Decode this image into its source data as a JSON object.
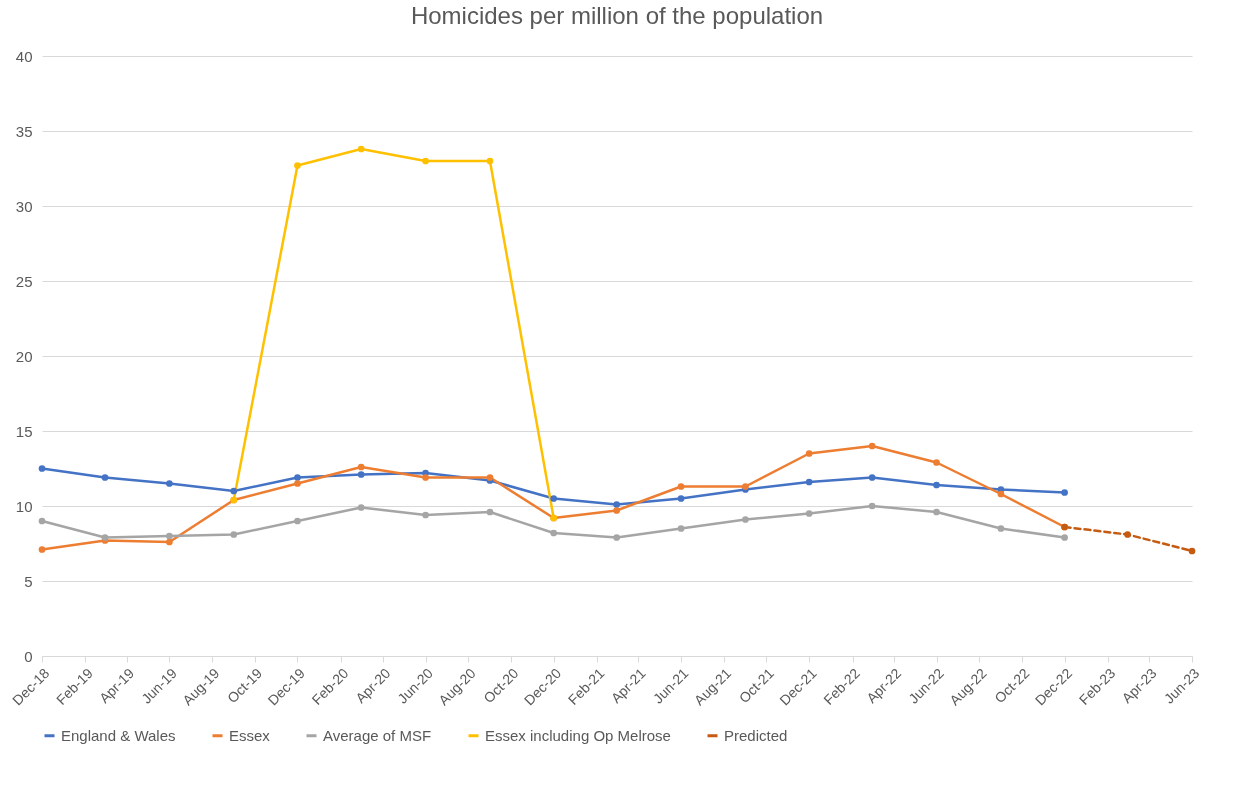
{
  "chart_data": {
    "type": "line",
    "title": "Homicides per million of the population",
    "x": [
      "2018-12",
      "2019-03",
      "2019-06",
      "2019-09",
      "2019-12",
      "2020-03",
      "2020-06",
      "2020-09",
      "2020-12",
      "2021-03",
      "2021-06",
      "2021-09",
      "2021-12",
      "2022-03",
      "2022-06",
      "2022-09",
      "2022-12"
    ],
    "series": [
      {
        "name": "England & Wales",
        "color": "#4472c4",
        "values": [
          12.5,
          11.9,
          11.5,
          11.0,
          11.9,
          12.1,
          12.2,
          11.7,
          10.5,
          10.1,
          10.5,
          11.1,
          11.6,
          11.9,
          11.4,
          11.1,
          10.9
        ]
      },
      {
        "name": "Essex",
        "color": "#ed7d31",
        "values": [
          7.1,
          7.7,
          7.6,
          10.4,
          11.5,
          12.6,
          11.9,
          11.9,
          9.2,
          9.7,
          11.3,
          11.3,
          13.5,
          14.0,
          12.9,
          10.8,
          8.6
        ]
      },
      {
        "name": "Average of MSF",
        "color": "#a5a5a5",
        "values": [
          9.0,
          7.9,
          8.0,
          8.1,
          9.0,
          9.9,
          9.4,
          9.6,
          8.2,
          7.9,
          8.5,
          9.1,
          9.5,
          10.0,
          9.6,
          8.5,
          7.9
        ]
      },
      {
        "name": "Essex including Op Melrose",
        "color": "#ffc000",
        "values": [
          null,
          null,
          null,
          10.4,
          32.7,
          33.8,
          33.0,
          33.0,
          9.2,
          null,
          null,
          null,
          null,
          null,
          null,
          null,
          null
        ]
      },
      {
        "name": "Predicted",
        "color": "#c55a11",
        "line_style": "dashed",
        "x": [
          "2022-12",
          "2023-03",
          "2023-06"
        ],
        "values": [
          8.6,
          8.1,
          7.0
        ]
      }
    ],
    "xlim": [
      "2018-12",
      "2023-06"
    ],
    "xticks": [
      {
        "value": "2018-12",
        "label": "Dec-18"
      },
      {
        "value": "2019-02",
        "label": "Feb-19"
      },
      {
        "value": "2019-04",
        "label": "Apr-19"
      },
      {
        "value": "2019-06",
        "label": "Jun-19"
      },
      {
        "value": "2019-08",
        "label": "Aug-19"
      },
      {
        "value": "2019-10",
        "label": "Oct-19"
      },
      {
        "value": "2019-12",
        "label": "Dec-19"
      },
      {
        "value": "2020-02",
        "label": "Feb-20"
      },
      {
        "value": "2020-04",
        "label": "Apr-20"
      },
      {
        "value": "2020-06",
        "label": "Jun-20"
      },
      {
        "value": "2020-08",
        "label": "Aug-20"
      },
      {
        "value": "2020-10",
        "label": "Oct-20"
      },
      {
        "value": "2020-12",
        "label": "Dec-20"
      },
      {
        "value": "2021-02",
        "label": "Feb-21"
      },
      {
        "value": "2021-04",
        "label": "Apr-21"
      },
      {
        "value": "2021-06",
        "label": "Jun-21"
      },
      {
        "value": "2021-08",
        "label": "Aug-21"
      },
      {
        "value": "2021-10",
        "label": "Oct-21"
      },
      {
        "value": "2021-12",
        "label": "Dec-21"
      },
      {
        "value": "2022-02",
        "label": "Feb-22"
      },
      {
        "value": "2022-04",
        "label": "Apr-22"
      },
      {
        "value": "2022-06",
        "label": "Jun-22"
      },
      {
        "value": "2022-08",
        "label": "Aug-22"
      },
      {
        "value": "2022-10",
        "label": "Oct-22"
      },
      {
        "value": "2022-12",
        "label": "Dec-22"
      },
      {
        "value": "2023-02",
        "label": "Feb-23"
      },
      {
        "value": "2023-04",
        "label": "Apr-23"
      },
      {
        "value": "2023-06",
        "label": "Jun-23"
      }
    ],
    "ylim": [
      0,
      40
    ],
    "yticks": [
      0,
      5,
      10,
      15,
      20,
      25,
      30,
      35,
      40
    ],
    "grid": "y",
    "legend": "bottom",
    "marker": "circle",
    "line_style": "solid"
  }
}
